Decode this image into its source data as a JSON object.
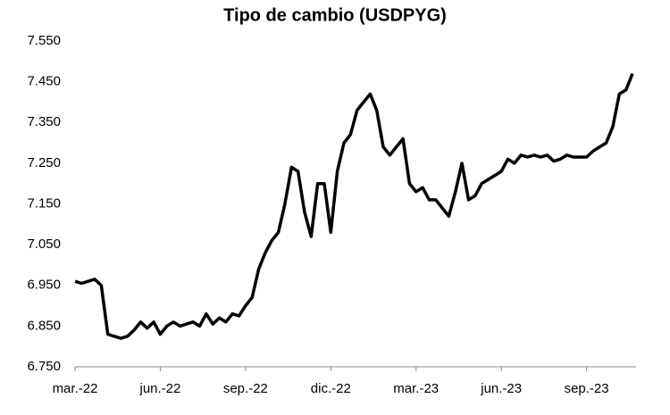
{
  "chart_data": {
    "type": "line",
    "title": "Tipo de cambio (USDPYG)",
    "categories": [
      "mar.-22",
      null,
      null,
      null,
      null,
      null,
      null,
      null,
      null,
      null,
      null,
      null,
      null,
      "jun.-22",
      null,
      null,
      null,
      null,
      null,
      null,
      null,
      null,
      null,
      null,
      null,
      null,
      "sep.-22",
      null,
      null,
      null,
      null,
      null,
      null,
      null,
      null,
      null,
      null,
      null,
      null,
      "dic.-22",
      null,
      null,
      null,
      null,
      null,
      null,
      null,
      null,
      null,
      null,
      null,
      null,
      "mar.-23",
      null,
      null,
      null,
      null,
      null,
      null,
      null,
      null,
      null,
      null,
      null,
      null,
      "jun.-23",
      null,
      null,
      null,
      null,
      null,
      null,
      null,
      null,
      null,
      null,
      null,
      null,
      "sep.-23",
      null,
      null,
      null,
      null,
      null,
      null,
      null
    ],
    "series": [
      {
        "color": "#000000",
        "values": [
          6960,
          6955,
          6960,
          6965,
          6950,
          6830,
          6825,
          6820,
          6825,
          6840,
          6860,
          6845,
          6860,
          6830,
          6850,
          6860,
          6850,
          6855,
          6860,
          6850,
          6880,
          6855,
          6870,
          6860,
          6880,
          6875,
          6900,
          6920,
          6990,
          7030,
          7060,
          7080,
          7150,
          7240,
          7230,
          7130,
          7070,
          7200,
          7200,
          7080,
          7230,
          7300,
          7320,
          7380,
          7400,
          7420,
          7380,
          7290,
          7270,
          7290,
          7310,
          7200,
          7180,
          7190,
          7160,
          7160,
          7140,
          7120,
          7180,
          7250,
          7160,
          7170,
          7200,
          7210,
          7220,
          7230,
          7260,
          7250,
          7270,
          7265,
          7270,
          7265,
          7270,
          7255,
          7260,
          7270,
          7265,
          7265,
          7265,
          7280,
          7290,
          7300,
          7340,
          7420,
          7430,
          7470
        ]
      }
    ],
    "ylim": [
      6750,
      7550
    ],
    "yticks": [
      {
        "value": 6750,
        "label": "6.750"
      },
      {
        "value": 6850,
        "label": "6.850"
      },
      {
        "value": 6950,
        "label": "6.950"
      },
      {
        "value": 7050,
        "label": "7.050"
      },
      {
        "value": 7150,
        "label": "7.150"
      },
      {
        "value": 7250,
        "label": "7.250"
      },
      {
        "value": 7350,
        "label": "7.350"
      },
      {
        "value": 7450,
        "label": "7.450"
      },
      {
        "value": 7550,
        "label": "7.550"
      }
    ],
    "grid": false
  }
}
